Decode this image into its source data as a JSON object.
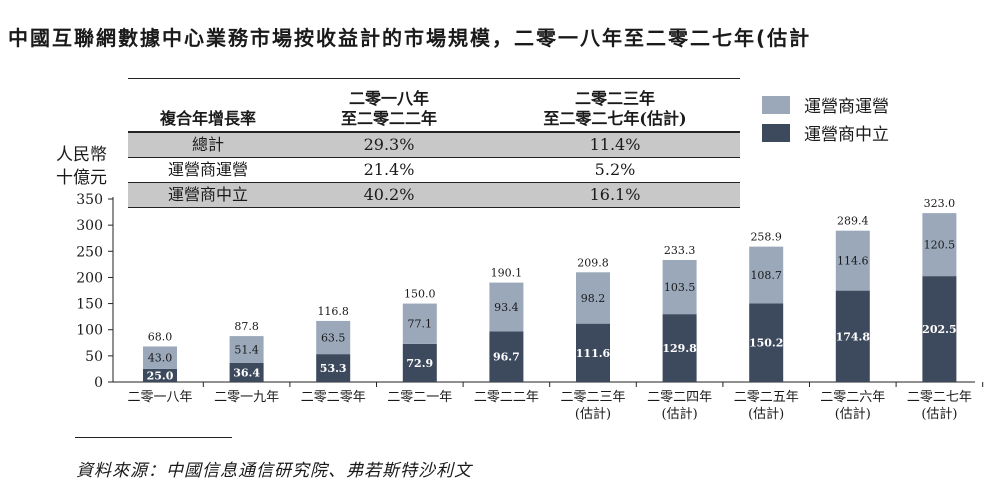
{
  "title": "中國互聯網數據中心業務市場按收益計的市場規模，二零一八年至二零二七年(估計",
  "cagr_table": {
    "header": {
      "label": "複合年增長率",
      "col1": [
        "二零一八年",
        "至二零二二年"
      ],
      "col2": [
        "二零二三年",
        "至二零二七年(估計)"
      ]
    },
    "rows": [
      {
        "label": "總計",
        "v1": "29.3%",
        "v2": "11.4%"
      },
      {
        "label": "運營商運營",
        "v1": "21.4%",
        "v2": "5.2%"
      },
      {
        "label": "運營商中立",
        "v1": "40.2%",
        "v2": "16.1%"
      }
    ]
  },
  "legend": [
    {
      "label": "運營商運營",
      "color": "#9aa8ba"
    },
    {
      "label": "運營商中立",
      "color": "#3d4a5d"
    }
  ],
  "source": "資料來源：中國信息通信研究院、弗若斯特沙利文",
  "chart_data": {
    "type": "bar",
    "stacked": true,
    "ylabel": [
      "人民幣",
      "十億元"
    ],
    "ylim": [
      0,
      350
    ],
    "yticks": [
      0,
      50,
      100,
      150,
      200,
      250,
      300,
      350
    ],
    "categories": [
      [
        "二零一八年"
      ],
      [
        "二零一九年"
      ],
      [
        "二零二零年"
      ],
      [
        "二零二一年"
      ],
      [
        "二零二二年"
      ],
      [
        "二零二三年",
        "(估計)"
      ],
      [
        "二零二四年",
        "(估計)"
      ],
      [
        "二零二五年",
        "(估計)"
      ],
      [
        "二零二六年",
        "(估計)"
      ],
      [
        "二零二七年",
        "(估計)"
      ]
    ],
    "series": [
      {
        "name": "運營商中立",
        "color": "#3d4a5d",
        "values": [
          25.0,
          36.4,
          53.3,
          72.9,
          96.7,
          111.6,
          129.8,
          150.2,
          174.8,
          202.5
        ]
      },
      {
        "name": "運營商運營",
        "color": "#9aa8ba",
        "values": [
          43.0,
          51.4,
          63.5,
          77.1,
          93.4,
          98.2,
          103.5,
          108.7,
          114.6,
          120.5
        ]
      }
    ],
    "totals": [
      68.0,
      87.8,
      116.8,
      150.0,
      190.1,
      209.8,
      233.3,
      258.9,
      289.4,
      323.0
    ]
  }
}
